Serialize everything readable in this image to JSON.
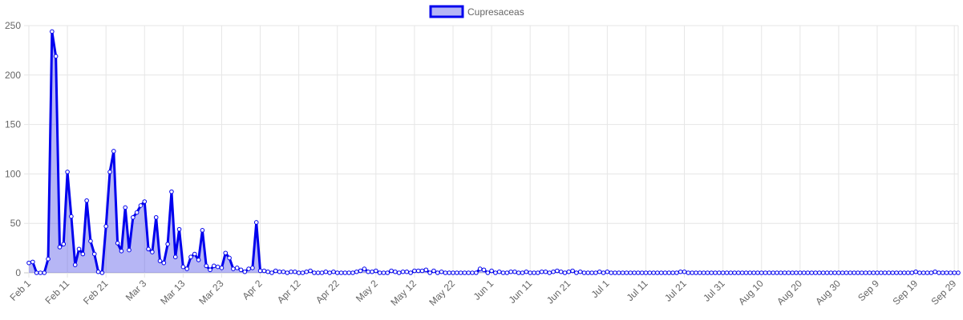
{
  "chart_data": {
    "type": "area",
    "title": "",
    "xlabel": "",
    "ylabel": "",
    "x_range": [
      "Feb 1",
      "Sep 30"
    ],
    "ylim": [
      0,
      250
    ],
    "y_ticks": [
      0,
      50,
      100,
      150,
      200,
      250
    ],
    "x_ticks": [
      "Feb 1",
      "Feb 11",
      "Feb 21",
      "Mar 3",
      "Mar 13",
      "Mar 23",
      "Apr 2",
      "Apr 12",
      "Apr 22",
      "May 2",
      "May 12",
      "May 22",
      "Jun 1",
      "Jun 11",
      "Jun 21",
      "Jul 1",
      "Jul 11",
      "Jul 21",
      "Jul 31",
      "Aug 10",
      "Aug 20",
      "Aug 30",
      "Sep 9",
      "Sep 19",
      "Sep 29"
    ],
    "grid": true,
    "legend_position": "top-center",
    "series": [
      {
        "name": "Cupresaceas",
        "line_color": "#0000ee",
        "fill_color": "rgba(80,80,230,0.42)",
        "points": [
          {
            "x": "Feb 1",
            "y": 10
          },
          {
            "x": "Feb 2",
            "y": 11
          },
          {
            "x": "Feb 3",
            "y": 0
          },
          {
            "x": "Feb 4",
            "y": 0
          },
          {
            "x": "Feb 5",
            "y": 0
          },
          {
            "x": "Feb 6",
            "y": 14
          },
          {
            "x": "Feb 7",
            "y": 244
          },
          {
            "x": "Feb 8",
            "y": 219
          },
          {
            "x": "Feb 9",
            "y": 26
          },
          {
            "x": "Feb 10",
            "y": 29
          },
          {
            "x": "Feb 11",
            "y": 102
          },
          {
            "x": "Feb 12",
            "y": 57
          },
          {
            "x": "Feb 13",
            "y": 8
          },
          {
            "x": "Feb 14",
            "y": 24
          },
          {
            "x": "Feb 15",
            "y": 19
          },
          {
            "x": "Feb 16",
            "y": 73
          },
          {
            "x": "Feb 17",
            "y": 32
          },
          {
            "x": "Feb 18",
            "y": 19
          },
          {
            "x": "Feb 19",
            "y": 1
          },
          {
            "x": "Feb 20",
            "y": 0
          },
          {
            "x": "Feb 21",
            "y": 47
          },
          {
            "x": "Feb 22",
            "y": 102
          },
          {
            "x": "Feb 23",
            "y": 123
          },
          {
            "x": "Feb 24",
            "y": 30
          },
          {
            "x": "Feb 25",
            "y": 22
          },
          {
            "x": "Feb 26",
            "y": 66
          },
          {
            "x": "Feb 27",
            "y": 23
          },
          {
            "x": "Feb 28",
            "y": 56
          },
          {
            "x": "Mar 1",
            "y": 61
          },
          {
            "x": "Mar 2",
            "y": 68
          },
          {
            "x": "Mar 3",
            "y": 72
          },
          {
            "x": "Mar 4",
            "y": 24
          },
          {
            "x": "Mar 5",
            "y": 21
          },
          {
            "x": "Mar 6",
            "y": 56
          },
          {
            "x": "Mar 7",
            "y": 12
          },
          {
            "x": "Mar 8",
            "y": 10
          },
          {
            "x": "Mar 9",
            "y": 29
          },
          {
            "x": "Mar 10",
            "y": 82
          },
          {
            "x": "Mar 11",
            "y": 16
          },
          {
            "x": "Mar 12",
            "y": 44
          },
          {
            "x": "Mar 13",
            "y": 6
          },
          {
            "x": "Mar 14",
            "y": 4
          },
          {
            "x": "Mar 15",
            "y": 16
          },
          {
            "x": "Mar 16",
            "y": 19
          },
          {
            "x": "Mar 17",
            "y": 13
          },
          {
            "x": "Mar 18",
            "y": 43
          },
          {
            "x": "Mar 19",
            "y": 7
          },
          {
            "x": "Mar 20",
            "y": 3
          },
          {
            "x": "Mar 21",
            "y": 7
          },
          {
            "x": "Mar 22",
            "y": 6
          },
          {
            "x": "Mar 23",
            "y": 5
          },
          {
            "x": "Mar 24",
            "y": 20
          },
          {
            "x": "Mar 25",
            "y": 15
          },
          {
            "x": "Mar 26",
            "y": 4
          },
          {
            "x": "Mar 27",
            "y": 5
          },
          {
            "x": "Mar 28",
            "y": 3
          },
          {
            "x": "Mar 29",
            "y": 1
          },
          {
            "x": "Mar 30",
            "y": 4
          },
          {
            "x": "Mar 31",
            "y": 5
          },
          {
            "x": "Apr 1",
            "y": 51
          },
          {
            "x": "Apr 2",
            "y": 2
          },
          {
            "x": "Apr 3",
            "y": 2
          },
          {
            "x": "Apr 4",
            "y": 1
          },
          {
            "x": "Apr 5",
            "y": 0
          },
          {
            "x": "Apr 6",
            "y": 2
          },
          {
            "x": "Apr 7",
            "y": 1
          },
          {
            "x": "Apr 8",
            "y": 1
          },
          {
            "x": "Apr 9",
            "y": 0
          },
          {
            "x": "Apr 10",
            "y": 1
          },
          {
            "x": "Apr 11",
            "y": 1
          },
          {
            "x": "Apr 12",
            "y": 0
          },
          {
            "x": "Apr 13",
            "y": 0
          },
          {
            "x": "Apr 14",
            "y": 1
          },
          {
            "x": "Apr 15",
            "y": 2
          },
          {
            "x": "Apr 16",
            "y": 0
          },
          {
            "x": "Apr 17",
            "y": 0
          },
          {
            "x": "Apr 18",
            "y": 0
          },
          {
            "x": "Apr 19",
            "y": 1
          },
          {
            "x": "Apr 20",
            "y": 0
          },
          {
            "x": "Apr 21",
            "y": 1
          },
          {
            "x": "Apr 22",
            "y": 0
          },
          {
            "x": "Apr 23",
            "y": 0
          },
          {
            "x": "Apr 24",
            "y": 0
          },
          {
            "x": "Apr 25",
            "y": 0
          },
          {
            "x": "Apr 26",
            "y": 0
          },
          {
            "x": "Apr 27",
            "y": 1
          },
          {
            "x": "Apr 28",
            "y": 2
          },
          {
            "x": "Apr 29",
            "y": 4
          },
          {
            "x": "Apr 30",
            "y": 1
          },
          {
            "x": "May 1",
            "y": 1
          },
          {
            "x": "May 2",
            "y": 2
          },
          {
            "x": "May 3",
            "y": 0
          },
          {
            "x": "May 4",
            "y": 0
          },
          {
            "x": "May 5",
            "y": 0
          },
          {
            "x": "May 6",
            "y": 2
          },
          {
            "x": "May 7",
            "y": 1
          },
          {
            "x": "May 8",
            "y": 0
          },
          {
            "x": "May 9",
            "y": 1
          },
          {
            "x": "May 10",
            "y": 1
          },
          {
            "x": "May 11",
            "y": 0
          },
          {
            "x": "May 12",
            "y": 2
          },
          {
            "x": "May 13",
            "y": 2
          },
          {
            "x": "May 14",
            "y": 2
          },
          {
            "x": "May 15",
            "y": 3
          },
          {
            "x": "May 16",
            "y": 0
          },
          {
            "x": "May 17",
            "y": 2
          },
          {
            "x": "May 18",
            "y": 0
          },
          {
            "x": "May 19",
            "y": 1
          },
          {
            "x": "May 20",
            "y": 0
          },
          {
            "x": "May 21",
            "y": 0
          },
          {
            "x": "May 22",
            "y": 0
          },
          {
            "x": "May 23",
            "y": 0
          },
          {
            "x": "May 24",
            "y": 0
          },
          {
            "x": "May 25",
            "y": 0
          },
          {
            "x": "May 26",
            "y": 0
          },
          {
            "x": "May 27",
            "y": 0
          },
          {
            "x": "May 28",
            "y": 0
          },
          {
            "x": "May 29",
            "y": 4
          },
          {
            "x": "May 30",
            "y": 3
          },
          {
            "x": "May 31",
            "y": 0
          },
          {
            "x": "Jun 1",
            "y": 2
          },
          {
            "x": "Jun 2",
            "y": 0
          },
          {
            "x": "Jun 3",
            "y": 1
          },
          {
            "x": "Jun 4",
            "y": 0
          },
          {
            "x": "Jun 5",
            "y": 0
          },
          {
            "x": "Jun 6",
            "y": 1
          },
          {
            "x": "Jun 7",
            "y": 1
          },
          {
            "x": "Jun 8",
            "y": 0
          },
          {
            "x": "Jun 9",
            "y": 0
          },
          {
            "x": "Jun 10",
            "y": 1
          },
          {
            "x": "Jun 11",
            "y": 0
          },
          {
            "x": "Jun 12",
            "y": 0
          },
          {
            "x": "Jun 13",
            "y": 0
          },
          {
            "x": "Jun 14",
            "y": 1
          },
          {
            "x": "Jun 15",
            "y": 1
          },
          {
            "x": "Jun 16",
            "y": 0
          },
          {
            "x": "Jun 17",
            "y": 1
          },
          {
            "x": "Jun 18",
            "y": 2
          },
          {
            "x": "Jun 19",
            "y": 1
          },
          {
            "x": "Jun 20",
            "y": 0
          },
          {
            "x": "Jun 21",
            "y": 1
          },
          {
            "x": "Jun 22",
            "y": 2
          },
          {
            "x": "Jun 23",
            "y": 0
          },
          {
            "x": "Jun 24",
            "y": 1
          },
          {
            "x": "Jun 25",
            "y": 0
          },
          {
            "x": "Jun 26",
            "y": 0
          },
          {
            "x": "Jun 27",
            "y": 0
          },
          {
            "x": "Jun 28",
            "y": 0
          },
          {
            "x": "Jun 29",
            "y": 1
          },
          {
            "x": "Jun 30",
            "y": 0
          },
          {
            "x": "Jul 1",
            "y": 1
          },
          {
            "x": "Jul 2",
            "y": 0
          },
          {
            "x": "Jul 3",
            "y": 0
          },
          {
            "x": "Jul 4",
            "y": 0
          },
          {
            "x": "Jul 5",
            "y": 0
          },
          {
            "x": "Jul 6",
            "y": 0
          },
          {
            "x": "Jul 7",
            "y": 0
          },
          {
            "x": "Jul 8",
            "y": 0
          },
          {
            "x": "Jul 9",
            "y": 0
          },
          {
            "x": "Jul 10",
            "y": 0
          },
          {
            "x": "Jul 11",
            "y": 0
          },
          {
            "x": "Jul 12",
            "y": 0
          },
          {
            "x": "Jul 13",
            "y": 0
          },
          {
            "x": "Jul 14",
            "y": 0
          },
          {
            "x": "Jul 15",
            "y": 0
          },
          {
            "x": "Jul 16",
            "y": 0
          },
          {
            "x": "Jul 17",
            "y": 0
          },
          {
            "x": "Jul 18",
            "y": 0
          },
          {
            "x": "Jul 19",
            "y": 0
          },
          {
            "x": "Jul 20",
            "y": 1
          },
          {
            "x": "Jul 21",
            "y": 1
          },
          {
            "x": "Jul 22",
            "y": 0
          },
          {
            "x": "Jul 23",
            "y": 0
          },
          {
            "x": "Jul 24",
            "y": 0
          },
          {
            "x": "Jul 25",
            "y": 0
          },
          {
            "x": "Jul 26",
            "y": 0
          },
          {
            "x": "Jul 27",
            "y": 0
          },
          {
            "x": "Jul 28",
            "y": 0
          },
          {
            "x": "Jul 29",
            "y": 0
          },
          {
            "x": "Jul 30",
            "y": 0
          },
          {
            "x": "Jul 31",
            "y": 0
          },
          {
            "x": "Aug 1",
            "y": 0
          },
          {
            "x": "Aug 2",
            "y": 0
          },
          {
            "x": "Aug 3",
            "y": 0
          },
          {
            "x": "Aug 4",
            "y": 0
          },
          {
            "x": "Aug 5",
            "y": 0
          },
          {
            "x": "Aug 6",
            "y": 0
          },
          {
            "x": "Aug 7",
            "y": 0
          },
          {
            "x": "Aug 8",
            "y": 0
          },
          {
            "x": "Aug 9",
            "y": 0
          },
          {
            "x": "Aug 10",
            "y": 0
          },
          {
            "x": "Aug 11",
            "y": 0
          },
          {
            "x": "Aug 12",
            "y": 0
          },
          {
            "x": "Aug 13",
            "y": 0
          },
          {
            "x": "Aug 14",
            "y": 0
          },
          {
            "x": "Aug 15",
            "y": 0
          },
          {
            "x": "Aug 16",
            "y": 0
          },
          {
            "x": "Aug 17",
            "y": 0
          },
          {
            "x": "Aug 18",
            "y": 0
          },
          {
            "x": "Aug 19",
            "y": 0
          },
          {
            "x": "Aug 20",
            "y": 0
          },
          {
            "x": "Aug 21",
            "y": 0
          },
          {
            "x": "Aug 22",
            "y": 0
          },
          {
            "x": "Aug 23",
            "y": 0
          },
          {
            "x": "Aug 24",
            "y": 0
          },
          {
            "x": "Aug 25",
            "y": 0
          },
          {
            "x": "Aug 26",
            "y": 0
          },
          {
            "x": "Aug 27",
            "y": 0
          },
          {
            "x": "Aug 28",
            "y": 0
          },
          {
            "x": "Aug 29",
            "y": 0
          },
          {
            "x": "Aug 30",
            "y": 0
          },
          {
            "x": "Aug 31",
            "y": 0
          },
          {
            "x": "Sep 1",
            "y": 0
          },
          {
            "x": "Sep 2",
            "y": 0
          },
          {
            "x": "Sep 3",
            "y": 0
          },
          {
            "x": "Sep 4",
            "y": 0
          },
          {
            "x": "Sep 5",
            "y": 0
          },
          {
            "x": "Sep 6",
            "y": 0
          },
          {
            "x": "Sep 7",
            "y": 0
          },
          {
            "x": "Sep 8",
            "y": 0
          },
          {
            "x": "Sep 9",
            "y": 0
          },
          {
            "x": "Sep 10",
            "y": 0
          },
          {
            "x": "Sep 11",
            "y": 0
          },
          {
            "x": "Sep 12",
            "y": 0
          },
          {
            "x": "Sep 13",
            "y": 0
          },
          {
            "x": "Sep 14",
            "y": 0
          },
          {
            "x": "Sep 15",
            "y": 0
          },
          {
            "x": "Sep 16",
            "y": 0
          },
          {
            "x": "Sep 17",
            "y": 0
          },
          {
            "x": "Sep 18",
            "y": 0
          },
          {
            "x": "Sep 19",
            "y": 1
          },
          {
            "x": "Sep 20",
            "y": 0
          },
          {
            "x": "Sep 21",
            "y": 0
          },
          {
            "x": "Sep 22",
            "y": 0
          },
          {
            "x": "Sep 23",
            "y": 0
          },
          {
            "x": "Sep 24",
            "y": 1
          },
          {
            "x": "Sep 25",
            "y": 0
          },
          {
            "x": "Sep 26",
            "y": 0
          },
          {
            "x": "Sep 27",
            "y": 0
          },
          {
            "x": "Sep 28",
            "y": 0
          },
          {
            "x": "Sep 29",
            "y": 0
          },
          {
            "x": "Sep 30",
            "y": 0
          }
        ]
      }
    ]
  }
}
